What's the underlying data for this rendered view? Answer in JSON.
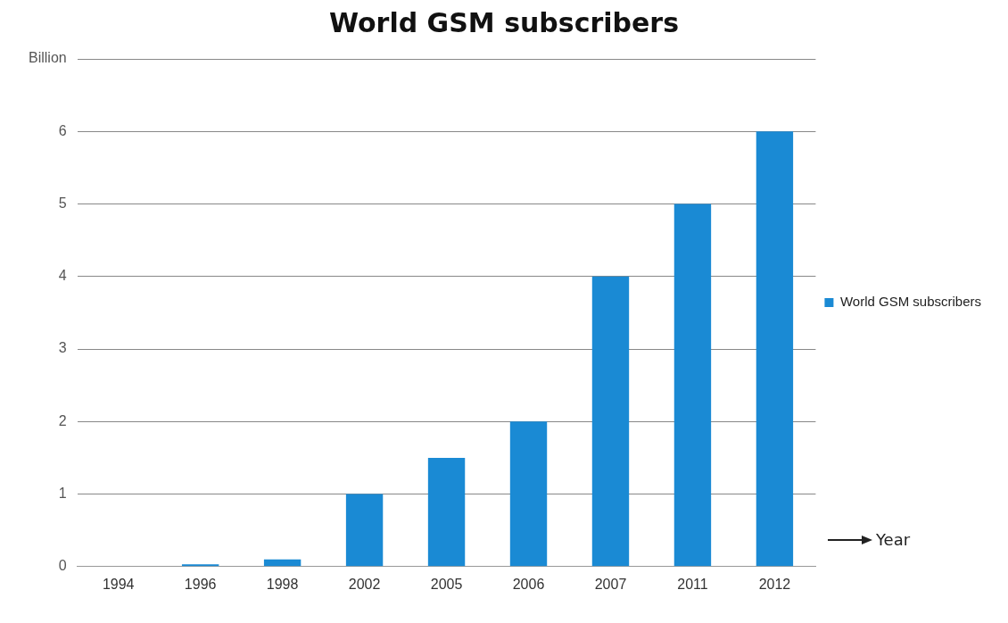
{
  "chart_data": {
    "type": "bar",
    "title": "World GSM subscribers",
    "xlabel": "Year",
    "categories": [
      "1994",
      "1996",
      "1998",
      "2002",
      "2005",
      "2006",
      "2007",
      "2011",
      "2012"
    ],
    "series": [
      {
        "name": "World GSM subscribers",
        "color": "#1a8ad4",
        "values": [
          0,
          0.03,
          0.1,
          1,
          1.5,
          2,
          4,
          5,
          6
        ]
      }
    ],
    "ylim": [
      0,
      7
    ],
    "yticks": [
      0,
      1,
      2,
      3,
      4,
      5,
      6,
      {
        "value": 7,
        "label": "Billion"
      }
    ],
    "grid": "y",
    "legend": "right"
  }
}
